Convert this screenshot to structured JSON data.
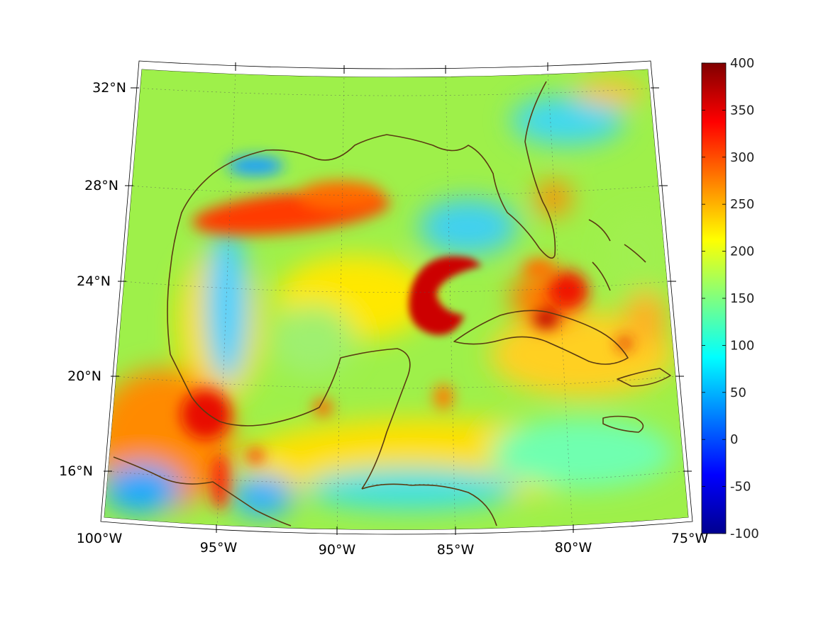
{
  "map": {
    "projection": "conic",
    "extent": {
      "lon_min": -100,
      "lon_max": -75,
      "lat_min": 14,
      "lat_max": 33
    },
    "grid": true,
    "field_colormap": "jet",
    "coastline_color": "#5a3b12",
    "latitude_labels": [
      "32°N",
      "28°N",
      "24°N",
      "20°N",
      "16°N"
    ],
    "longitude_labels": [
      "100°W",
      "95°W",
      "90°W",
      "85°W",
      "80°W",
      "75°W"
    ]
  },
  "colorbar": {
    "min": -100,
    "max": 400,
    "labels": [
      "400",
      "350",
      "300",
      "250",
      "200",
      "150",
      "100",
      "50",
      "0",
      "-50",
      "-100"
    ],
    "placement": "right"
  }
}
